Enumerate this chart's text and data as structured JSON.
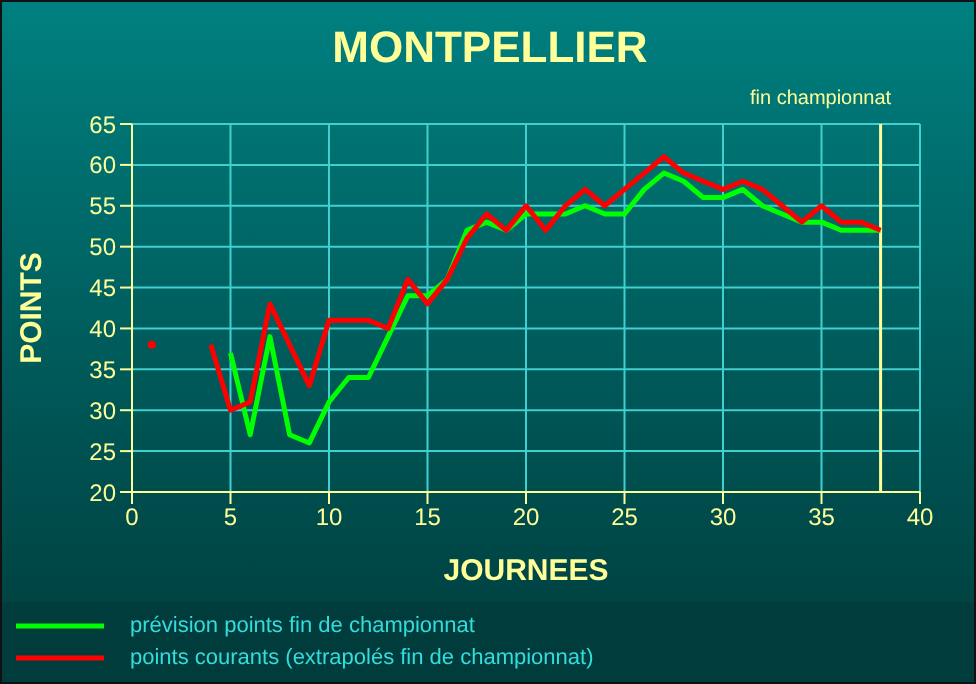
{
  "chart_data": {
    "type": "line",
    "title": "MONTPELLIER",
    "xlabel": "JOURNEES",
    "ylabel": "POINTS",
    "x": [
      1,
      2,
      3,
      4,
      5,
      6,
      7,
      8,
      9,
      10,
      11,
      12,
      13,
      14,
      15,
      16,
      17,
      18,
      19,
      20,
      21,
      22,
      23,
      24,
      25,
      26,
      27,
      28,
      29,
      30,
      31,
      32,
      33,
      34,
      35,
      36,
      37,
      38
    ],
    "series": [
      {
        "name": "prévision points fin de championnat",
        "color": "#00ff00",
        "values": [
          null,
          null,
          null,
          null,
          37,
          27,
          39,
          27,
          26,
          31,
          34,
          34,
          39,
          44,
          44,
          46,
          52,
          53,
          52,
          54,
          54,
          54,
          55,
          54,
          54,
          57,
          59,
          58,
          56,
          56,
          57,
          55,
          54,
          53,
          53,
          52,
          52,
          52
        ]
      },
      {
        "name": "points courants (extrapolés fin de championnat)",
        "color": "#ff0000",
        "values": [
          38,
          null,
          null,
          38,
          30,
          31,
          43,
          38,
          33,
          41,
          41,
          41,
          40,
          46,
          43,
          46,
          51,
          54,
          52,
          55,
          52,
          55,
          57,
          55,
          57,
          59,
          61,
          59,
          58,
          57,
          58,
          57,
          55,
          53,
          55,
          53,
          53,
          52
        ]
      }
    ],
    "xlim": [
      0,
      40
    ],
    "xticks": [
      0,
      5,
      10,
      15,
      20,
      25,
      30,
      35,
      40
    ],
    "ylim": [
      20,
      65
    ],
    "yticks": [
      20,
      25,
      30,
      35,
      40,
      45,
      50,
      55,
      60,
      65
    ],
    "ref_lines": [
      {
        "axis": "x",
        "value": 38,
        "label": "fin championnat",
        "color": "#ffff99"
      }
    ],
    "grid": true,
    "legend": "bottom",
    "marker": "none",
    "line_style": "solid"
  }
}
